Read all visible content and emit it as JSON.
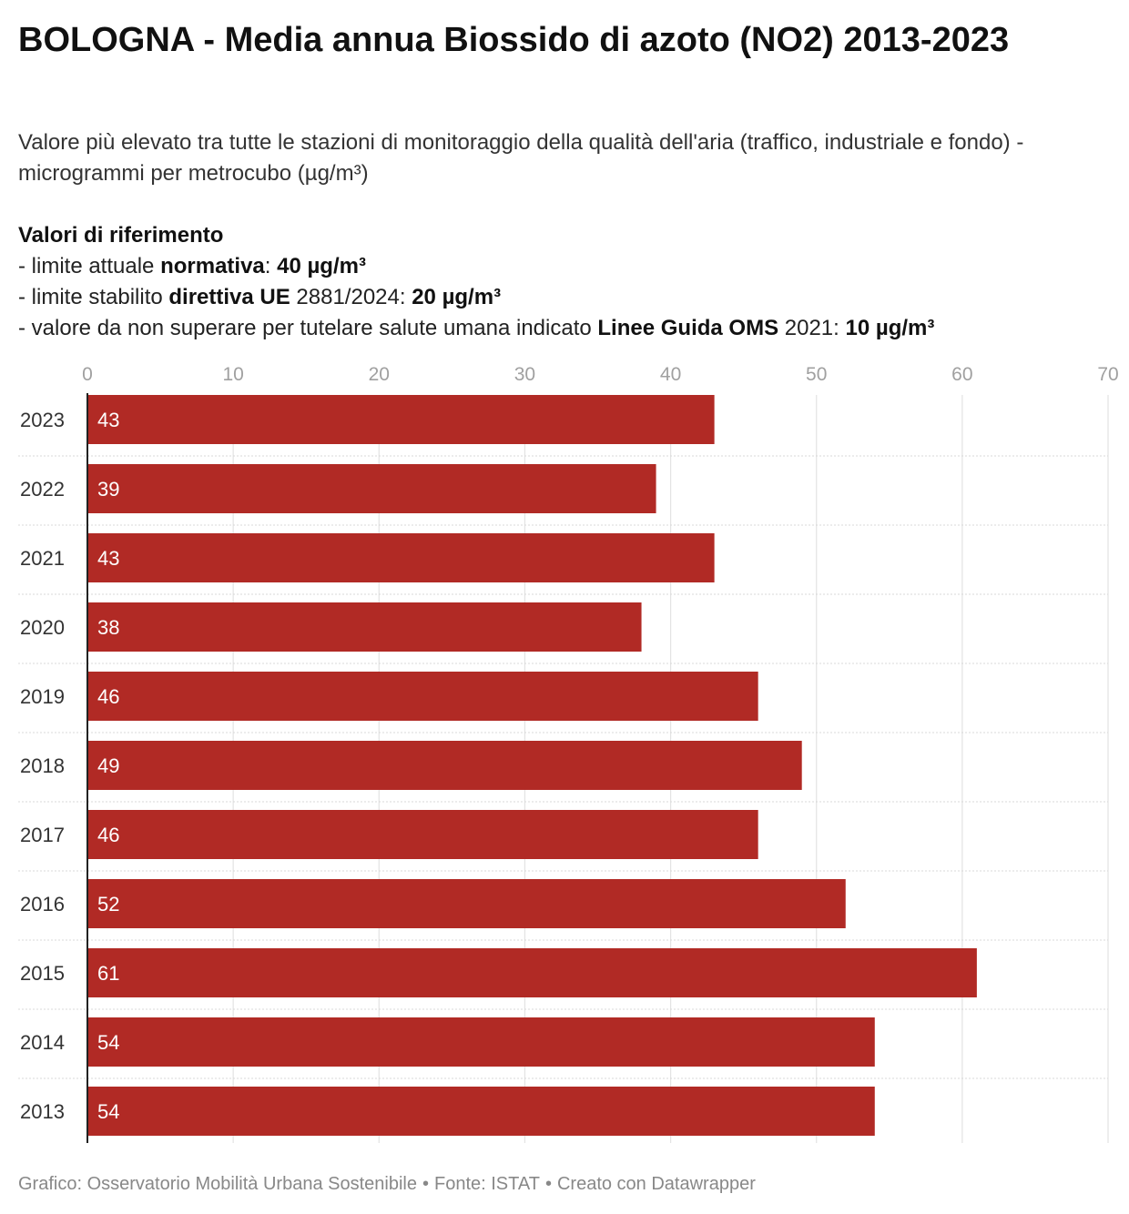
{
  "chart_data": {
    "type": "bar",
    "orientation": "horizontal",
    "title": "BOLOGNA - Media annua Biossido di azoto (NO2) 2013-2023",
    "subtitle": "Valore più elevato tra tutte le stazioni di monitoraggio della qualità dell'aria (traffico, industriale e fondo) - microgrammi per metrocubo (µg/m³)",
    "notes": {
      "heading": "Valori di riferimento",
      "line1": {
        "prefix": "- limite attuale ",
        "bold1": "normativa",
        "mid": ": ",
        "bold2": "40 µg/m³"
      },
      "line2": {
        "prefix": "- limite stabilito ",
        "bold1": "direttiva UE",
        "mid": " 2881/2024: ",
        "bold2": "20 µg/m³"
      },
      "line3": {
        "prefix": "- valore da non superare per tutelare salute umana indicato ",
        "bold1": "Linee Guida OMS",
        "mid": " 2021: ",
        "bold2": "10 µg/m³"
      }
    },
    "categories": [
      "2023",
      "2022",
      "2021",
      "2020",
      "2019",
      "2018",
      "2017",
      "2016",
      "2015",
      "2014",
      "2013"
    ],
    "values": [
      43,
      39,
      43,
      38,
      46,
      49,
      46,
      52,
      61,
      54,
      54
    ],
    "xlim": [
      0,
      70
    ],
    "xticks": [
      "0",
      "10",
      "20",
      "30",
      "40",
      "50",
      "60",
      "70"
    ],
    "tick_values": [
      0,
      10,
      20,
      30,
      40,
      50,
      60,
      70
    ],
    "axis_position": "top",
    "grid": true,
    "data_labels": true,
    "colors": {
      "bar": "#b12a25",
      "bar_label": "#ffffff",
      "grid": "#e3e3e3",
      "row_divider": "#d8d8d8",
      "baseline": "#222222",
      "tick_label": "#a0a0a0",
      "category_label": "#333333"
    },
    "footer": {
      "credit": "Grafico: Osservatorio Mobilità Urbana Sostenibile",
      "source": "Fonte: ISTAT",
      "tool": "Creato con Datawrapper",
      "separator": "•"
    }
  }
}
